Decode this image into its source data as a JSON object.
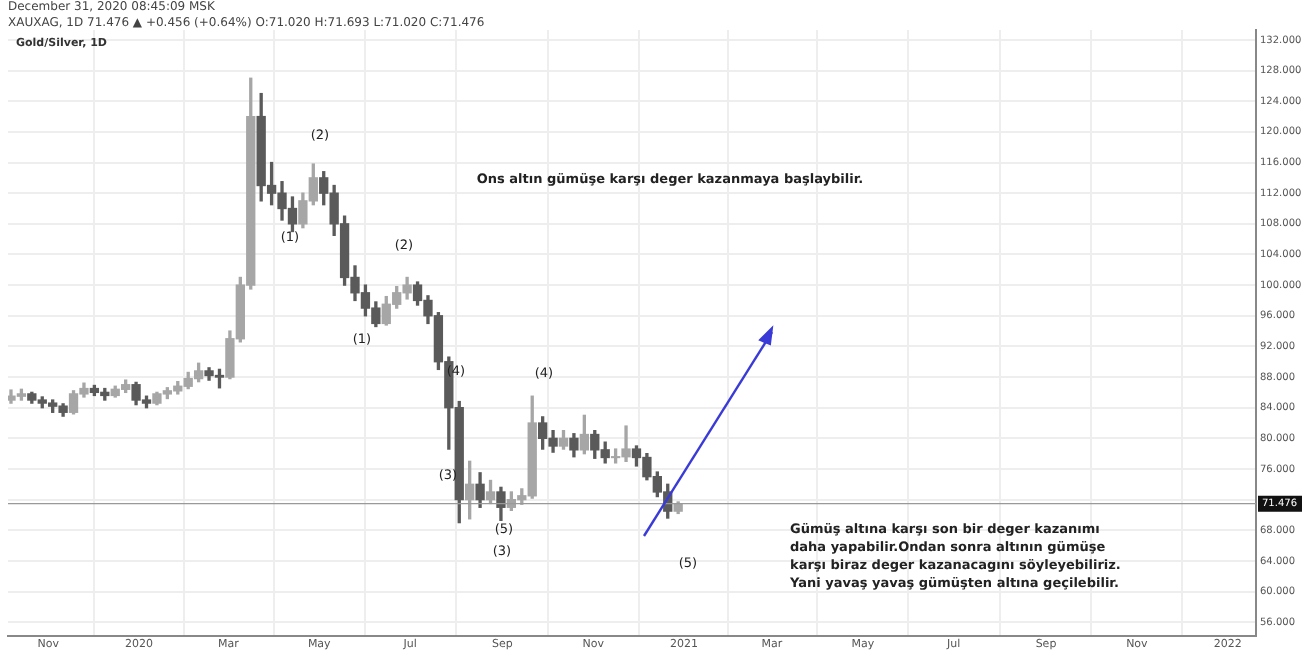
{
  "chart_data": {
    "type": "candlestick",
    "title": "Gold/Silver, 1D",
    "subtitle": "December 31, 2020 08:45:09 MSK",
    "annotations": [
      "XAUXAG, 1D 71.476 ▲ +0.456 (+0.64%) O:71.020 H:71.693 L:71.020 C:71.476",
      "Ons altın gümüşe karşı deger kazanmaya başlaybilir.",
      "Gümüş altına karşı son bir deger kazanımı",
      "daha yapabilir.Ondan sonra altının gümüşe",
      "karşı biraz deger kazanacagını söyleyebiliriz.",
      "Yani yavaş yavaş gümüşten altına geçilebilir.",
      "(2)",
      "(1)",
      "(2)",
      "(1)",
      "(4)",
      "(3)",
      "(5)",
      "(3)",
      "(4)",
      "(5)"
    ],
    "x": [
      "2019-10-07",
      "2019-10-14",
      "2019-10-21",
      "2019-10-28",
      "2019-11-04",
      "2019-11-11",
      "2019-11-18",
      "2019-11-25",
      "2019-12-02",
      "2019-12-09",
      "2019-12-16",
      "2019-12-23",
      "2019-12-30",
      "2020-01-06",
      "2020-01-13",
      "2020-01-20",
      "2020-01-27",
      "2020-02-03",
      "2020-02-10",
      "2020-02-17",
      "2020-02-24",
      "2020-03-02",
      "2020-03-09",
      "2020-03-16",
      "2020-03-23",
      "2020-03-30",
      "2020-04-06",
      "2020-04-13",
      "2020-04-20",
      "2020-04-27",
      "2020-05-04",
      "2020-05-11",
      "2020-05-18",
      "2020-05-25",
      "2020-06-01",
      "2020-06-08",
      "2020-06-15",
      "2020-06-22",
      "2020-06-29",
      "2020-07-06",
      "2020-07-13",
      "2020-07-20",
      "2020-07-27",
      "2020-08-03",
      "2020-08-10",
      "2020-08-17",
      "2020-08-24",
      "2020-08-31",
      "2020-09-07",
      "2020-09-14",
      "2020-09-21",
      "2020-09-28",
      "2020-10-05",
      "2020-10-12",
      "2020-10-19",
      "2020-10-26",
      "2020-11-02",
      "2020-11-09",
      "2020-11-16",
      "2020-11-23",
      "2020-11-30",
      "2020-12-07",
      "2020-12-14",
      "2020-12-21",
      "2020-12-28"
    ],
    "ohlc": [
      [
        85.0,
        86.3,
        84.6,
        85.5
      ],
      [
        85.5,
        86.4,
        85.0,
        85.8
      ],
      [
        85.8,
        86.0,
        84.6,
        85.0
      ],
      [
        85.0,
        85.4,
        84.0,
        84.6
      ],
      [
        84.6,
        85.0,
        83.4,
        84.2
      ],
      [
        84.2,
        84.5,
        82.9,
        83.4
      ],
      [
        83.4,
        86.2,
        83.2,
        85.8
      ],
      [
        85.8,
        87.2,
        85.4,
        86.5
      ],
      [
        86.5,
        86.9,
        85.6,
        86.0
      ],
      [
        86.0,
        86.5,
        85.0,
        85.6
      ],
      [
        85.6,
        86.8,
        85.4,
        86.4
      ],
      [
        86.4,
        87.6,
        86.0,
        87.0
      ],
      [
        87.0,
        87.3,
        84.4,
        85.0
      ],
      [
        85.0,
        85.5,
        84.0,
        84.6
      ],
      [
        84.6,
        86.0,
        84.4,
        85.8
      ],
      [
        85.8,
        86.6,
        85.2,
        86.2
      ],
      [
        86.2,
        87.4,
        85.8,
        86.8
      ],
      [
        86.8,
        88.6,
        86.5,
        87.8
      ],
      [
        87.8,
        89.8,
        87.4,
        88.8
      ],
      [
        88.8,
        89.2,
        87.6,
        88.2
      ],
      [
        88.2,
        89.0,
        86.6,
        88.0
      ],
      [
        88.0,
        94.0,
        87.8,
        93.0
      ],
      [
        93.0,
        101.0,
        92.6,
        100.0
      ],
      [
        100.0,
        127.0,
        99.5,
        122.0
      ],
      [
        122.0,
        125.0,
        111.0,
        113.0
      ],
      [
        113.0,
        116.0,
        110.5,
        112.0
      ],
      [
        112.0,
        113.5,
        108.5,
        110.0
      ],
      [
        110.0,
        111.5,
        107.0,
        108.0
      ],
      [
        108.0,
        112.0,
        107.5,
        111.0
      ],
      [
        111.0,
        115.8,
        110.5,
        114.0
      ],
      [
        114.0,
        114.8,
        110.5,
        112.0
      ],
      [
        112.0,
        113.0,
        106.5,
        108.0
      ],
      [
        108.0,
        109.0,
        100.0,
        101.0
      ],
      [
        101.0,
        102.5,
        98.0,
        99.0
      ],
      [
        99.0,
        100.0,
        96.0,
        97.0
      ],
      [
        97.0,
        97.8,
        94.6,
        95.0
      ],
      [
        95.0,
        98.5,
        94.8,
        97.5
      ],
      [
        97.5,
        99.8,
        97.0,
        99.0
      ],
      [
        99.0,
        101.0,
        98.2,
        100.0
      ],
      [
        100.0,
        100.4,
        97.4,
        98.0
      ],
      [
        98.0,
        98.6,
        95.0,
        96.0
      ],
      [
        96.0,
        96.4,
        89.0,
        90.0
      ],
      [
        90.0,
        90.6,
        78.6,
        84.0
      ],
      [
        84.0,
        84.8,
        69.0,
        72.0
      ],
      [
        72.0,
        77.0,
        69.5,
        74.0
      ],
      [
        74.0,
        75.5,
        71.0,
        72.0
      ],
      [
        72.0,
        74.5,
        71.5,
        73.0
      ],
      [
        73.0,
        73.6,
        69.3,
        71.0
      ],
      [
        71.0,
        73.0,
        70.6,
        72.0
      ],
      [
        72.0,
        73.4,
        71.4,
        72.5
      ],
      [
        72.5,
        85.5,
        72.2,
        82.0
      ],
      [
        82.0,
        82.8,
        78.6,
        80.0
      ],
      [
        80.0,
        81.0,
        78.2,
        79.0
      ],
      [
        79.0,
        81.0,
        78.6,
        80.0
      ],
      [
        80.0,
        80.6,
        77.6,
        78.5
      ],
      [
        78.5,
        83.0,
        78.0,
        80.5
      ],
      [
        80.5,
        81.0,
        77.4,
        78.5
      ],
      [
        78.5,
        79.5,
        76.8,
        77.5
      ],
      [
        77.5,
        78.6,
        76.8,
        77.6
      ],
      [
        77.6,
        81.6,
        77.0,
        78.6
      ],
      [
        78.6,
        79.0,
        76.4,
        77.5
      ],
      [
        77.5,
        78.0,
        74.6,
        75.0
      ],
      [
        75.0,
        75.6,
        72.4,
        73.0
      ],
      [
        73.0,
        74.0,
        69.6,
        70.5
      ],
      [
        70.5,
        71.693,
        70.2,
        71.476
      ]
    ],
    "colors": [
      "#a6a6a6",
      "#a6a6a6",
      "#5a5a5a",
      "#5a5a5a",
      "#5a5a5a",
      "#5a5a5a",
      "#a6a6a6",
      "#a6a6a6",
      "#5a5a5a",
      "#5a5a5a",
      "#a6a6a6",
      "#a6a6a6",
      "#5a5a5a",
      "#5a5a5a",
      "#a6a6a6",
      "#a6a6a6",
      "#a6a6a6",
      "#a6a6a6",
      "#a6a6a6",
      "#5a5a5a",
      "#5a5a5a",
      "#a6a6a6",
      "#a6a6a6",
      "#a6a6a6",
      "#5a5a5a",
      "#5a5a5a",
      "#5a5a5a",
      "#5a5a5a",
      "#a6a6a6",
      "#a6a6a6",
      "#5a5a5a",
      "#5a5a5a",
      "#5a5a5a",
      "#5a5a5a",
      "#5a5a5a",
      "#5a5a5a",
      "#a6a6a6",
      "#a6a6a6",
      "#a6a6a6",
      "#5a5a5a",
      "#5a5a5a",
      "#5a5a5a",
      "#5a5a5a",
      "#5a5a5a",
      "#a6a6a6",
      "#5a5a5a",
      "#a6a6a6",
      "#5a5a5a",
      "#a6a6a6",
      "#a6a6a6",
      "#a6a6a6",
      "#5a5a5a",
      "#5a5a5a",
      "#a6a6a6",
      "#5a5a5a",
      "#a6a6a6",
      "#5a5a5a",
      "#5a5a5a",
      "#a6a6a6",
      "#a6a6a6",
      "#5a5a5a",
      "#5a5a5a",
      "#5a5a5a",
      "#5a5a5a",
      "#a6a6a6"
    ],
    "xlim": [
      "2019-10-05",
      "2022-01-20"
    ],
    "xticks": [
      {
        "value": "2019-11-01",
        "label": "Nov"
      },
      {
        "value": "2020-01-01",
        "label": "2020"
      },
      {
        "value": "2020-03-01",
        "label": "Mar"
      },
      {
        "value": "2020-05-01",
        "label": "May"
      },
      {
        "value": "2020-07-01",
        "label": "Jul"
      },
      {
        "value": "2020-09-01",
        "label": "Sep"
      },
      {
        "value": "2020-11-01",
        "label": "Nov"
      },
      {
        "value": "2021-01-01",
        "label": "2021"
      },
      {
        "value": "2021-03-01",
        "label": "Mar"
      },
      {
        "value": "2021-05-01",
        "label": "May"
      },
      {
        "value": "2021-07-01",
        "label": "Jul"
      },
      {
        "value": "2021-09-01",
        "label": "Sep"
      },
      {
        "value": "2021-11-01",
        "label": "Nov"
      },
      {
        "value": "2022-01-01",
        "label": "2022"
      }
    ],
    "ylim": [
      54.2,
      133.3
    ],
    "yticks": [
      {
        "value": 56,
        "label": "56.000"
      },
      {
        "value": 60,
        "label": "60.000"
      },
      {
        "value": 64,
        "label": "64.000"
      },
      {
        "value": 68,
        "label": "68.000"
      },
      {
        "value": 72,
        "label": null
      },
      {
        "value": 76,
        "label": "76.000"
      },
      {
        "value": 80,
        "label": "80.000"
      },
      {
        "value": 84,
        "label": "84.000"
      },
      {
        "value": 88,
        "label": "88.000"
      },
      {
        "value": 92,
        "label": "92.000"
      },
      {
        "value": 96,
        "label": "96.000"
      },
      {
        "value": 100,
        "label": "100.000"
      },
      {
        "value": 104,
        "label": "104.000"
      },
      {
        "value": 108,
        "label": "108.000"
      },
      {
        "value": 112,
        "label": "112.000"
      },
      {
        "value": 116,
        "label": "116.000"
      },
      {
        "value": 120,
        "label": "120.000"
      },
      {
        "value": 124,
        "label": "124.000"
      },
      {
        "value": 128,
        "label": "128.000"
      },
      {
        "value": 132,
        "label": "132.000"
      }
    ],
    "grid": true,
    "ref_lines": [
      {
        "axis": "y",
        "value": 71.476,
        "label": "71.476"
      }
    ]
  }
}
